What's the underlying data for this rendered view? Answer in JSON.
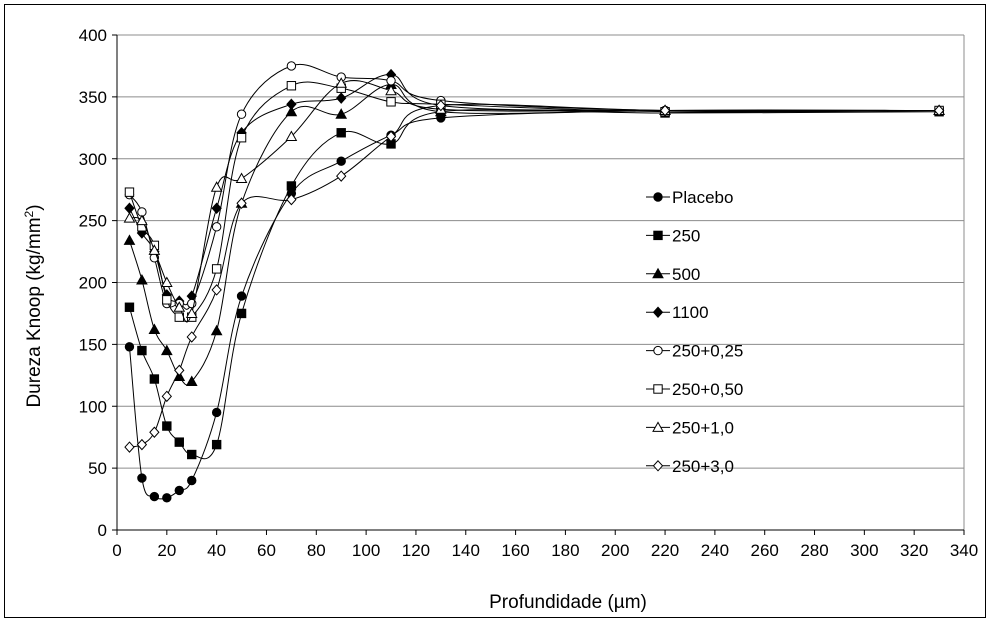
{
  "chart_data": {
    "type": "line",
    "title": "",
    "xlabel": "Profundidade (µm)",
    "ylabel_main": "Dureza Knoop (kg/mm",
    "ylabel_sup": "2",
    "ylabel_close": ")",
    "xlim": [
      0,
      340
    ],
    "ylim": [
      0,
      400
    ],
    "xticks": [
      0,
      20,
      40,
      60,
      80,
      100,
      120,
      140,
      160,
      180,
      200,
      220,
      240,
      260,
      280,
      300,
      320,
      340
    ],
    "yticks": [
      0,
      50,
      100,
      150,
      200,
      250,
      300,
      350,
      400
    ],
    "grid": "horizontal",
    "legend_position": "right",
    "x": [
      5,
      10,
      15,
      20,
      25,
      30,
      40,
      50,
      70,
      90,
      110,
      130,
      220,
      330
    ],
    "series": [
      {
        "name": "Placebo",
        "marker": "circle-filled",
        "values": [
          148,
          42,
          27,
          26,
          32,
          40,
          95,
          189,
          272,
          298,
          319,
          333,
          339,
          339
        ]
      },
      {
        "name": "250",
        "marker": "square-filled",
        "values": [
          180,
          145,
          122,
          84,
          71,
          61,
          69,
          175,
          278,
          321,
          312,
          338,
          337,
          338
        ]
      },
      {
        "name": "500",
        "marker": "triangle-filled",
        "values": [
          234,
          202,
          162,
          145,
          124,
          120,
          161,
          264,
          338,
          336,
          360,
          338,
          339,
          339
        ]
      },
      {
        "name": "1100",
        "marker": "diamond-filled",
        "values": [
          260,
          240,
          225,
          190,
          185,
          189,
          260,
          321,
          344,
          349,
          368,
          343,
          339,
          339
        ]
      },
      {
        "name": "250+0,25",
        "marker": "circle-open",
        "values": [
          271,
          257,
          220,
          183,
          183,
          183,
          245,
          336,
          375,
          366,
          363,
          347,
          339,
          339
        ]
      },
      {
        "name": "250+0,50",
        "marker": "square-open",
        "values": [
          273,
          245,
          230,
          186,
          172,
          172,
          211,
          317,
          359,
          357,
          346,
          344,
          338,
          339
        ]
      },
      {
        "name": "250+1,0",
        "marker": "triangle-open",
        "values": [
          252,
          250,
          226,
          200,
          180,
          175,
          277,
          284,
          318,
          361,
          355,
          340,
          339,
          339
        ]
      },
      {
        "name": "250+3,0",
        "marker": "diamond-open",
        "values": [
          67,
          69,
          79,
          108,
          129,
          156,
          194,
          264,
          267,
          286,
          318,
          343,
          339,
          339
        ]
      }
    ]
  }
}
